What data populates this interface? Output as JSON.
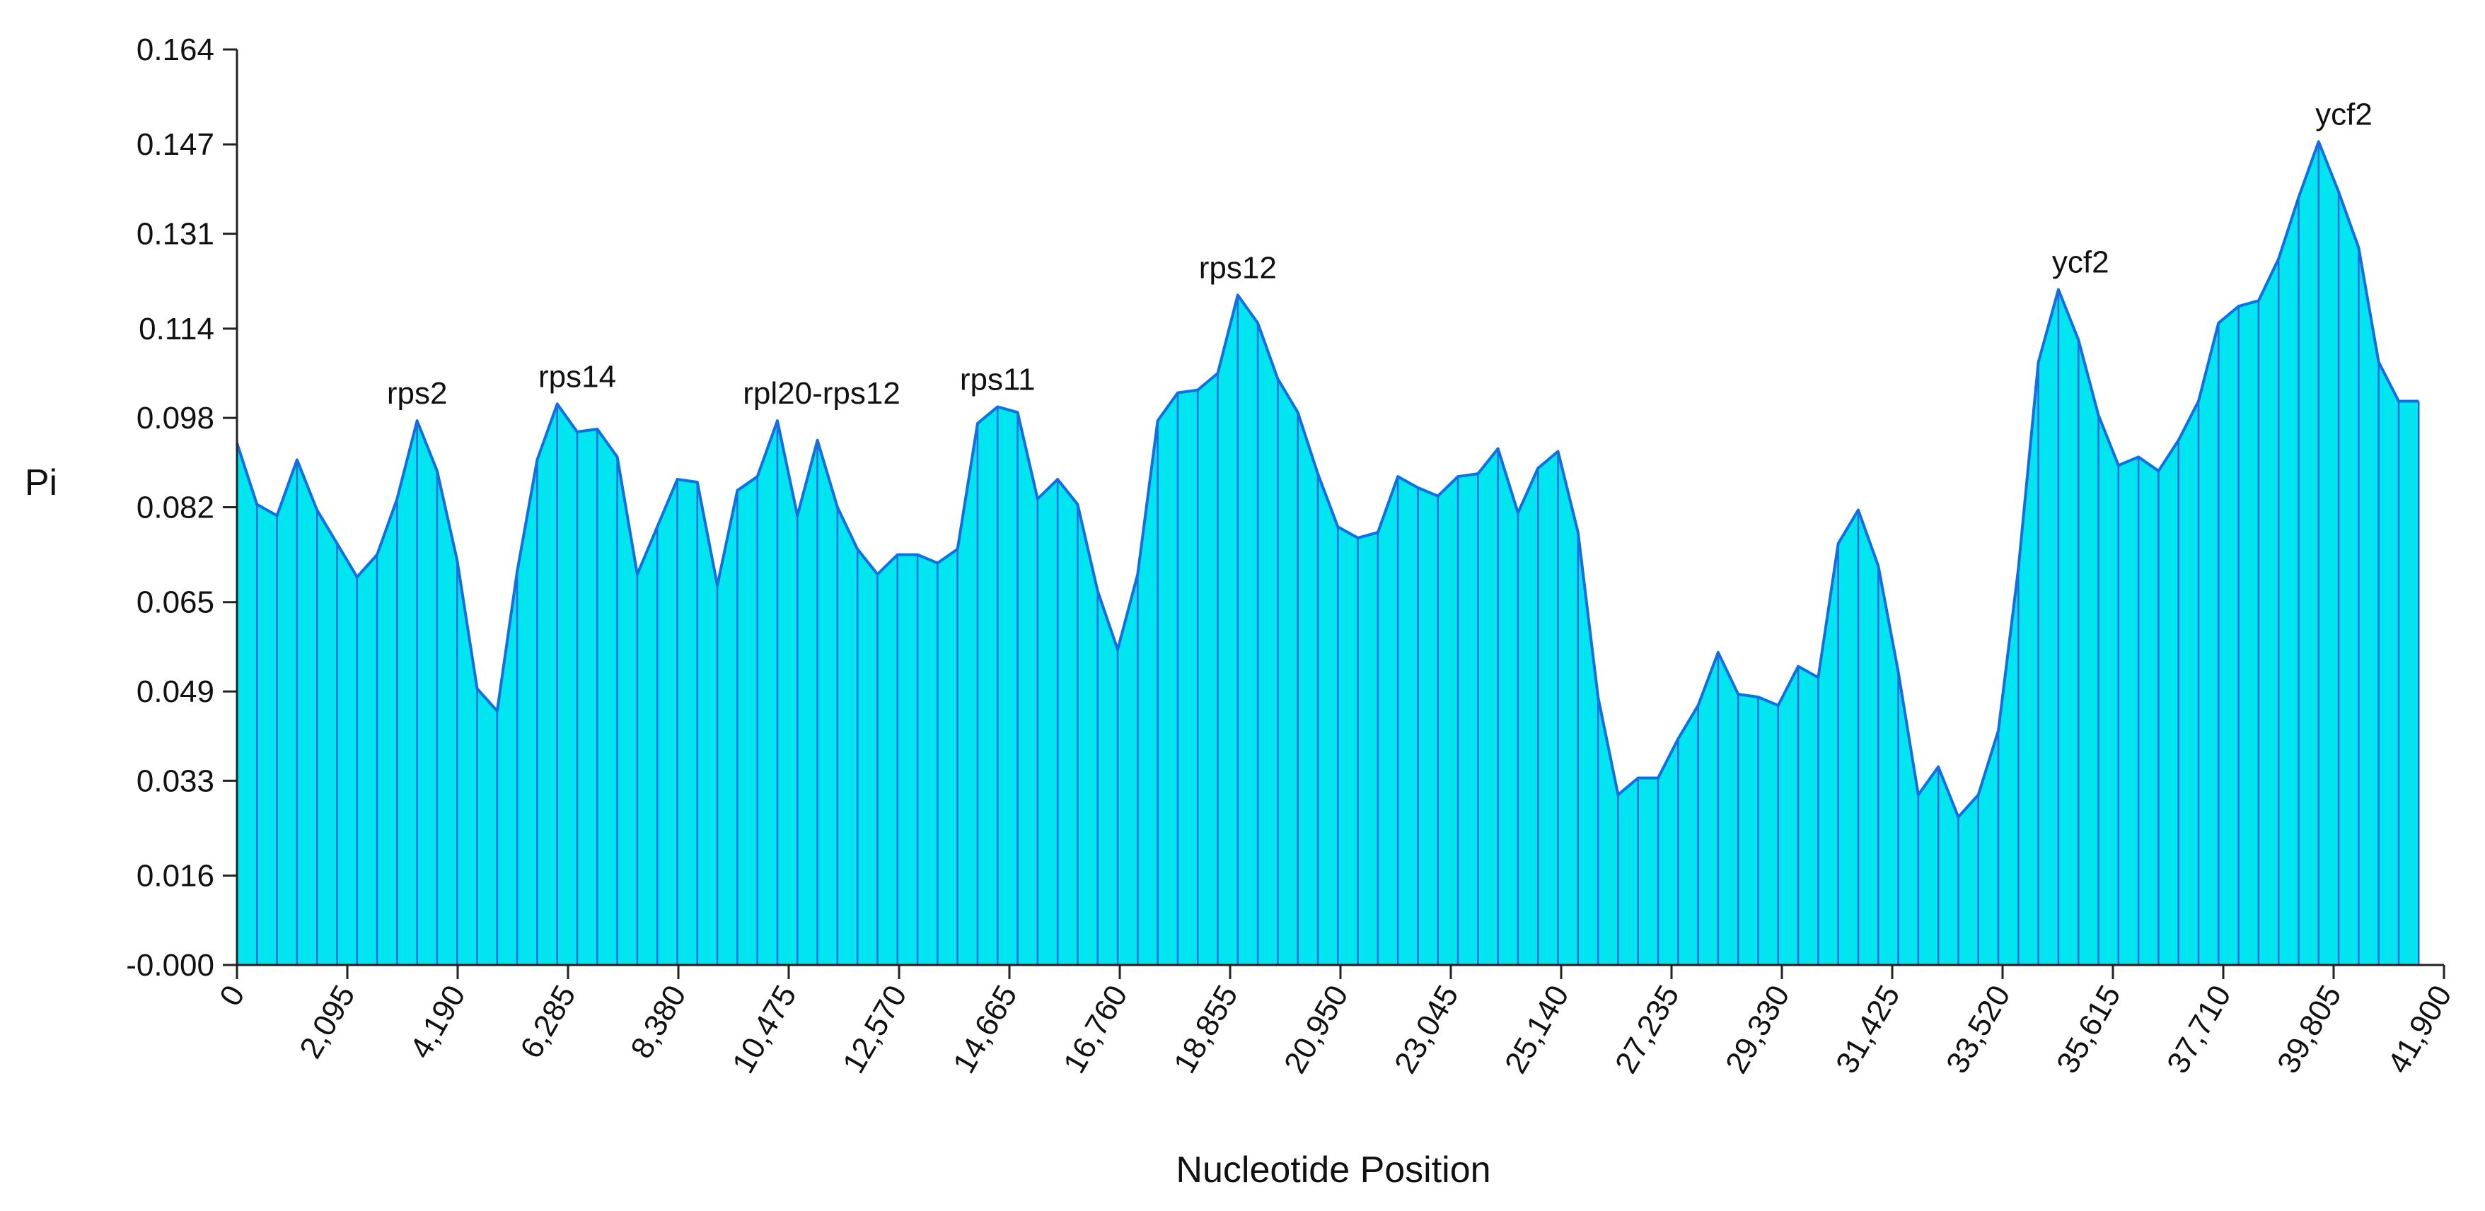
{
  "chart_data": {
    "type": "area",
    "xlabel": "Nucleotide Position",
    "ylabel": "Pi",
    "ylim": [
      0,
      0.164
    ],
    "xlim": [
      0,
      41900
    ],
    "y_ticks": [
      "-0.000",
      "0.016",
      "0.033",
      "0.049",
      "0.065",
      "0.082",
      "0.098",
      "0.114",
      "0.131",
      "0.147",
      "0.164"
    ],
    "y_tick_values": [
      0,
      0.016,
      0.033,
      0.049,
      0.065,
      0.082,
      0.098,
      0.114,
      0.131,
      0.147,
      0.164
    ],
    "x_ticks": [
      "0",
      "2,095",
      "4,190",
      "6,285",
      "8,380",
      "10,475",
      "12,570",
      "14,665",
      "16,760",
      "18,855",
      "20,950",
      "23,045",
      "25,140",
      "27,235",
      "29,330",
      "31,425",
      "33,520",
      "35,615",
      "37,710",
      "39,805",
      "41,900"
    ],
    "x_tick_values": [
      0,
      2095,
      4190,
      6285,
      8380,
      10475,
      12570,
      14665,
      16760,
      18855,
      20950,
      23045,
      25140,
      27235,
      29330,
      31425,
      33520,
      35615,
      37710,
      39805,
      41900
    ],
    "x_rotation_deg": -60,
    "grid": false,
    "fill_color": "#00e5f0",
    "line_color": "#1a6be0",
    "series": [
      {
        "x": [
          0,
          380,
          760,
          1140,
          1520,
          1900,
          2280,
          2660,
          3040,
          3420,
          3800,
          4180,
          4560,
          4940,
          5320,
          5700,
          6080,
          6460,
          6840,
          7220,
          7600,
          7980,
          8360,
          8740,
          9120,
          9500,
          9880,
          10260,
          10640,
          11020,
          11400,
          11780,
          12160,
          12540,
          12920,
          13300,
          13680,
          14060,
          14440,
          14820,
          15200,
          15580,
          15960,
          16340,
          16720,
          17100,
          17480,
          17860,
          18240,
          18620,
          19000,
          19380,
          19760,
          20140,
          20520,
          20900,
          21280,
          21660,
          22040,
          22420,
          22800,
          23180,
          23560,
          23940,
          24320,
          24700,
          25080,
          25460,
          25840,
          26220,
          26600,
          26980,
          27360,
          27740,
          28120,
          28500,
          28880,
          29260,
          29640,
          30020,
          30400,
          30780,
          31160,
          31540,
          31920,
          32300,
          32680,
          33060,
          33440,
          33820,
          34200,
          34580,
          34960,
          35340,
          35720,
          36100,
          36480,
          36860,
          37240,
          37620,
          38000,
          38380,
          38760,
          39140,
          39520,
          39900,
          40280,
          40660,
          41040,
          41420
        ],
        "y": [
          0.0935,
          0.0825,
          0.0805,
          0.0905,
          0.0815,
          0.0755,
          0.0695,
          0.0735,
          0.0835,
          0.0975,
          0.0885,
          0.0725,
          0.0495,
          0.0455,
          0.0705,
          0.0905,
          0.1005,
          0.0955,
          0.096,
          0.091,
          0.07,
          0.0785,
          0.087,
          0.0865,
          0.068,
          0.085,
          0.0875,
          0.0975,
          0.0805,
          0.094,
          0.082,
          0.0745,
          0.07,
          0.0735,
          0.0735,
          0.072,
          0.0745,
          0.097,
          0.1,
          0.099,
          0.0835,
          0.087,
          0.0825,
          0.067,
          0.0565,
          0.07,
          0.0975,
          0.1025,
          0.103,
          0.106,
          0.12,
          0.115,
          0.105,
          0.099,
          0.088,
          0.0785,
          0.0765,
          0.0775,
          0.0875,
          0.0855,
          0.084,
          0.0875,
          0.088,
          0.0925,
          0.081,
          0.089,
          0.092,
          0.0775,
          0.048,
          0.0305,
          0.0335,
          0.0335,
          0.0405,
          0.0465,
          0.056,
          0.0485,
          0.048,
          0.0465,
          0.0535,
          0.0515,
          0.0755,
          0.0815,
          0.0715,
          0.0525,
          0.0305,
          0.0355,
          0.0265,
          0.0305,
          0.042,
          0.071,
          0.108,
          0.121,
          0.112,
          0.0985,
          0.0895,
          0.091,
          0.0885,
          0.094,
          0.101,
          0.115,
          0.118,
          0.119,
          0.1265,
          0.1375,
          0.1475,
          0.1385,
          0.1285,
          0.108,
          0.101,
          0.101
        ]
      }
    ],
    "annotations": [
      {
        "text": "rps2",
        "x": 3420,
        "y": 0.0975
      },
      {
        "text": "rps14",
        "x": 6460,
        "y": 0.1005
      },
      {
        "text": "rpl20-rps12",
        "x": 11100,
        "y": 0.0975
      },
      {
        "text": "rps11",
        "x": 14440,
        "y": 0.1
      },
      {
        "text": "rps12",
        "x": 19000,
        "y": 0.12
      },
      {
        "text": "ycf2",
        "x": 35000,
        "y": 0.121
      },
      {
        "text": "ycf2",
        "x": 40000,
        "y": 0.1475
      }
    ]
  }
}
